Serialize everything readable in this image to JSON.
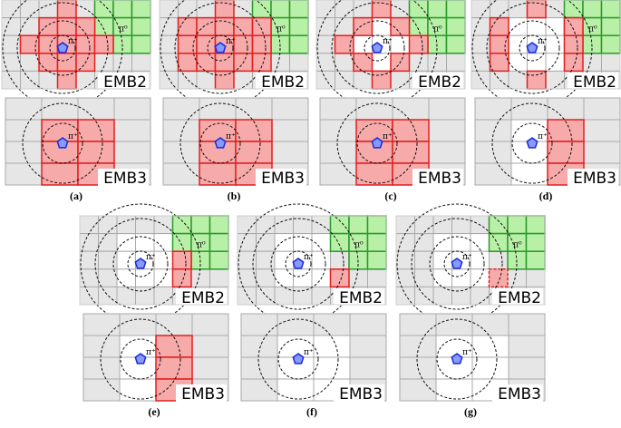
{
  "panels": [
    {
      "label": "(a)",
      "emb2": "EMB2",
      "emb3": "EMB3",
      "pi0": "π⁰",
      "pi_top": "π⁺",
      "pi_bottom": "π⁺"
    },
    {
      "label": "(b)",
      "emb2": "EMB2",
      "emb3": "EMB3",
      "pi0": "π⁰",
      "pi_top": "π⁺",
      "pi_bottom": "π⁺"
    },
    {
      "label": "(c)",
      "emb2": "EMB2",
      "emb3": "EMB3",
      "pi0": "π⁰",
      "pi_top": "π⁺",
      "pi_bottom": "π⁺"
    },
    {
      "label": "(d)",
      "emb2": "EMB2",
      "emb3": "EMB3",
      "pi0": "π⁰",
      "pi_top": "π⁺",
      "pi_bottom": "π⁺"
    },
    {
      "label": "(e)",
      "emb2": "EMB2",
      "emb3": "EMB3",
      "pi0": "π⁰",
      "pi_top": "π⁺",
      "pi_bottom": "π⁺"
    },
    {
      "label": "(f)",
      "emb2": "EMB2",
      "emb3": "EMB3",
      "pi0": "π⁰",
      "pi_top": "π⁺",
      "pi_bottom": "π⁺"
    },
    {
      "label": "(g)",
      "emb2": "EMB2",
      "emb3": "EMB3",
      "pi0": "π⁰",
      "pi_top": "π⁺",
      "pi_bottom": "π⁺"
    }
  ]
}
